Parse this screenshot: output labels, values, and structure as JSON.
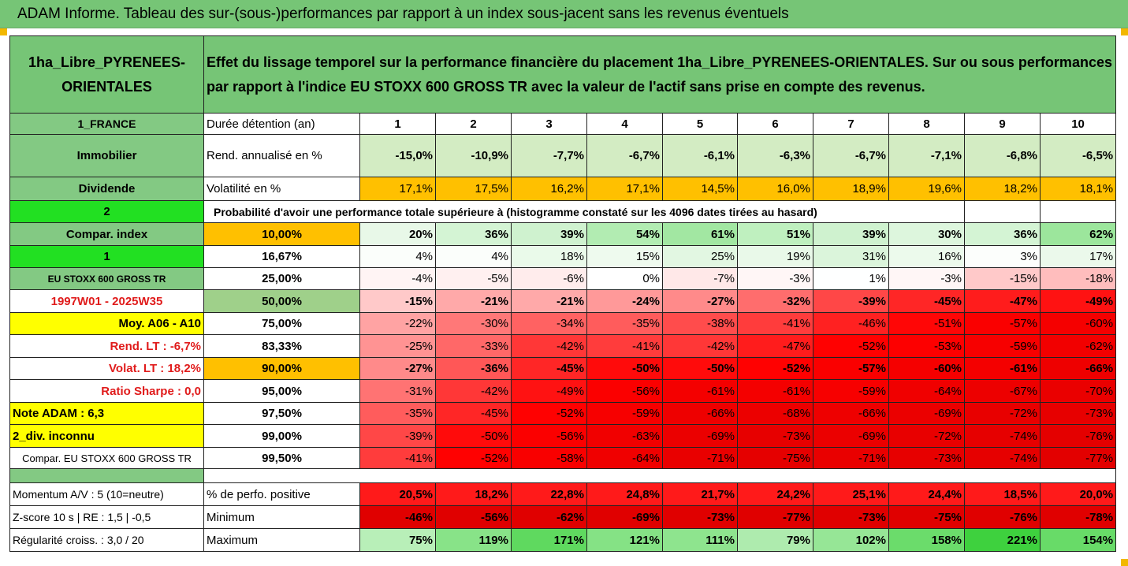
{
  "title": "ADAM Informe. Tableau des sur-(sous-)performances par rapport à un index sous-jacent sans les revenus éventuels",
  "fund_name_line1": "1ha_Libre_PYRENEES-",
  "fund_name_line2": "ORIENTALES",
  "description_line1": "Effet du lissage temporel sur la performance financière du placement 1ha_Libre_PYRENEES-ORIENTALES. Sur ou sous performances",
  "description_line2": "par rapport à l'indice EU STOXX 600 GROSS TR avec la valeur de l'actif sans prise en compte des revenus.",
  "left_labels": {
    "country": "1_FRANCE",
    "category": "Immobilier",
    "dividend": "Dividende",
    "num2": "2",
    "compar_index": "Compar. index",
    "num1": "1",
    "index_name": "EU STOXX 600 GROSS TR",
    "period": "1997W01 - 2025W35",
    "moy": "Moy. A06 - A10",
    "rend_lt": "Rend. LT :   -6,7%",
    "volat_lt": "Volat. LT :   18,2%",
    "sharpe": "Ratio Sharpe :   0,0",
    "note": "Note ADAM : 6,3",
    "div": "2_div. inconnu",
    "compar_full": "Compar. EU STOXX 600 GROSS TR",
    "momentum": "Momentum A/V : 5 (10=neutre)",
    "zscore": "Z-score 10 s  |  RE : 1,5  |  -0,5",
    "regularite": "Régularité croiss. : 3,0 / 20"
  },
  "row_labels": {
    "duree": "Durée détention (an)",
    "rend": "Rend. annualisé en %",
    "volat": "Volatilité en %",
    "proba": "Probabilité d'avoir une performance totale supérieure à (histogramme constaté sur les 4096 dates tirées au hasard)",
    "perf_pos": "% de perfo. positive",
    "minimum": "Minimum",
    "maximum": "Maximum"
  },
  "years": [
    "1",
    "2",
    "3",
    "4",
    "5",
    "6",
    "7",
    "8",
    "9",
    "10"
  ],
  "rend": [
    "-15,0%",
    "-10,9%",
    "-7,7%",
    "-6,7%",
    "-6,1%",
    "-6,3%",
    "-6,7%",
    "-7,1%",
    "-6,8%",
    "-6,5%"
  ],
  "volat": [
    "17,1%",
    "17,5%",
    "16,2%",
    "17,1%",
    "14,5%",
    "16,0%",
    "18,9%",
    "19,6%",
    "18,2%",
    "18,1%"
  ],
  "quantiles": [
    {
      "q": "10,00%",
      "values": [
        "20%",
        "36%",
        "39%",
        "54%",
        "61%",
        "51%",
        "39%",
        "30%",
        "36%",
        "62%"
      ],
      "colors": [
        "#e8f8e8",
        "#d4f4d4",
        "#cff2cf",
        "#b2ecb2",
        "#a2e7a2",
        "#bff0bf",
        "#cff2cf",
        "#ddf6dd",
        "#d4f4d4",
        "#9ce69c"
      ]
    },
    {
      "q": "16,67%",
      "values": [
        "4%",
        "4%",
        "18%",
        "15%",
        "25%",
        "19%",
        "31%",
        "16%",
        "3%",
        "17%"
      ],
      "colors": [
        "#fbfefb",
        "#fbfefb",
        "#eafaea",
        "#eefaee",
        "#e2f7e2",
        "#e9f9e9",
        "#dbf5db",
        "#ecfaec",
        "#fcfefc",
        "#ebf9eb"
      ]
    },
    {
      "q": "25,00%",
      "values": [
        "-4%",
        "-5%",
        "-6%",
        "0%",
        "-7%",
        "-3%",
        "1%",
        "-3%",
        "-15%",
        "-18%"
      ],
      "colors": [
        "#fff4f4",
        "#fff0f0",
        "#ffecec",
        "#ffffff",
        "#ffe8e8",
        "#fff6f6",
        "#feffff",
        "#fff6f6",
        "#ffc9c9",
        "#ffbdbd"
      ]
    },
    {
      "q": "50,00%",
      "values": [
        "-15%",
        "-21%",
        "-21%",
        "-24%",
        "-27%",
        "-32%",
        "-39%",
        "-45%",
        "-47%",
        "-49%"
      ],
      "colors": [
        "#ffc9c9",
        "#ffa9a9",
        "#ffa9a9",
        "#ff9999",
        "#ff8a8a",
        "#ff6d6d",
        "#ff4747",
        "#ff2626",
        "#ff1c1c",
        "#ff1212"
      ]
    },
    {
      "q": "75,00%",
      "values": [
        "-22%",
        "-30%",
        "-34%",
        "-35%",
        "-38%",
        "-41%",
        "-46%",
        "-51%",
        "-57%",
        "-60%"
      ],
      "colors": [
        "#ffa3a3",
        "#ff7878",
        "#ff6262",
        "#ff5c5c",
        "#ff4c4c",
        "#ff3c3c",
        "#ff2121",
        "#ff0606",
        "#fa0000",
        "#f50000"
      ]
    },
    {
      "q": "83,33%",
      "values": [
        "-25%",
        "-33%",
        "-42%",
        "-41%",
        "-42%",
        "-47%",
        "-52%",
        "-53%",
        "-59%",
        "-62%"
      ],
      "colors": [
        "#ff9393",
        "#ff6868",
        "#ff3737",
        "#ff3c3c",
        "#ff3737",
        "#ff1c1c",
        "#ff0101",
        "#fd0000",
        "#f70000",
        "#f20000"
      ]
    },
    {
      "q": "90,00%",
      "values": [
        "-27%",
        "-36%",
        "-45%",
        "-50%",
        "-50%",
        "-52%",
        "-57%",
        "-60%",
        "-61%",
        "-66%"
      ],
      "colors": [
        "#ff8a8a",
        "#ff5757",
        "#ff2626",
        "#ff0b0b",
        "#ff0b0b",
        "#ff0101",
        "#fa0000",
        "#f50000",
        "#f40000",
        "#ee0000"
      ]
    },
    {
      "q": "95,00%",
      "values": [
        "-31%",
        "-42%",
        "-49%",
        "-56%",
        "-61%",
        "-61%",
        "-59%",
        "-64%",
        "-67%",
        "-70%"
      ],
      "colors": [
        "#ff7373",
        "#ff3737",
        "#ff1212",
        "#fb0000",
        "#f40000",
        "#f40000",
        "#f70000",
        "#f00000",
        "#ed0000",
        "#ea0000"
      ]
    },
    {
      "q": "97,50%",
      "values": [
        "-35%",
        "-45%",
        "-52%",
        "-59%",
        "-66%",
        "-68%",
        "-66%",
        "-69%",
        "-72%",
        "-73%"
      ],
      "colors": [
        "#ff5c5c",
        "#ff2626",
        "#ff0101",
        "#f70000",
        "#ee0000",
        "#ec0000",
        "#ee0000",
        "#eb0000",
        "#e80000",
        "#e70000"
      ]
    },
    {
      "q": "99,00%",
      "values": [
        "-39%",
        "-50%",
        "-56%",
        "-63%",
        "-69%",
        "-73%",
        "-69%",
        "-72%",
        "-74%",
        "-76%"
      ],
      "colors": [
        "#ff4747",
        "#ff0b0b",
        "#fb0000",
        "#f10000",
        "#eb0000",
        "#e70000",
        "#eb0000",
        "#e80000",
        "#e60000",
        "#e40000"
      ]
    },
    {
      "q": "99,50%",
      "values": [
        "-41%",
        "-52%",
        "-58%",
        "-64%",
        "-71%",
        "-75%",
        "-71%",
        "-73%",
        "-74%",
        "-77%"
      ],
      "colors": [
        "#ff3c3c",
        "#ff0101",
        "#f90000",
        "#f00000",
        "#e90000",
        "#e50000",
        "#e90000",
        "#e70000",
        "#e60000",
        "#e30000"
      ]
    }
  ],
  "perf_pos": [
    "20,5%",
    "18,2%",
    "22,8%",
    "24,8%",
    "21,7%",
    "24,2%",
    "25,1%",
    "24,4%",
    "18,5%",
    "20,0%"
  ],
  "minimum": [
    "-46%",
    "-56%",
    "-62%",
    "-69%",
    "-73%",
    "-77%",
    "-73%",
    "-75%",
    "-76%",
    "-78%"
  ],
  "maximum": [
    "75%",
    "119%",
    "171%",
    "121%",
    "111%",
    "79%",
    "102%",
    "158%",
    "221%",
    "154%"
  ],
  "maximum_colors": [
    "#b8efb8",
    "#88e388",
    "#5fd95f",
    "#85e285",
    "#8ee48e",
    "#aeebae",
    "#96e696",
    "#6bdc6b",
    "#3ed13e",
    "#68db68"
  ],
  "colors": {
    "header_green": "#76c576",
    "label_green": "#83c983",
    "bright_green": "#22e022",
    "yellow": "#ffff00",
    "orange": "#ffc000",
    "rend_green": "#d3ecc3",
    "dark_red_text": "#e01b1b",
    "perf_red": "#ff1a1a",
    "min_red": "#e00000"
  }
}
